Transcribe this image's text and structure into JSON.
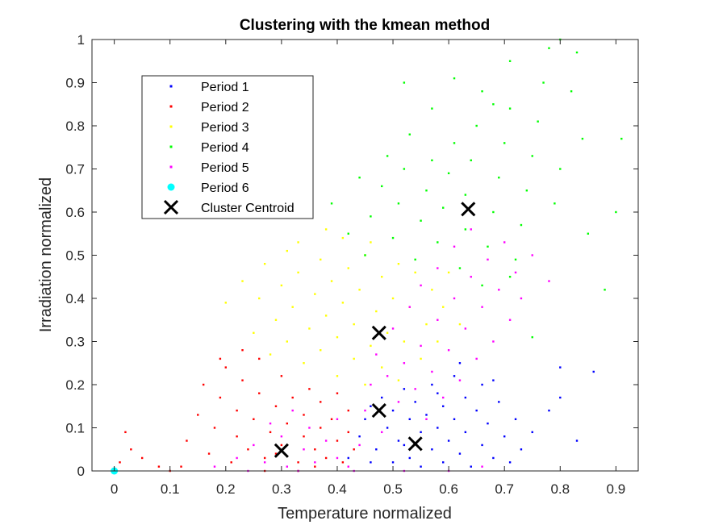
{
  "chart_data": {
    "type": "scatter",
    "title": "Clustering with the kmean method",
    "xlabel": "Temperature normalized",
    "ylabel": "Irradiation normalized",
    "xlim": [
      -0.04,
      0.94
    ],
    "ylim": [
      0,
      1
    ],
    "xticks": [
      "0",
      "0.1",
      "0.2",
      "0.3",
      "0.4",
      "0.5",
      "0.6",
      "0.7",
      "0.8",
      "0.9"
    ],
    "yticks": [
      "0",
      "0.1",
      "0.2",
      "0.3",
      "0.4",
      "0.5",
      "0.6",
      "0.7",
      "0.8",
      "0.9",
      "1"
    ],
    "grid": false,
    "legend_position": "top-left",
    "series": [
      {
        "name": "Period 1",
        "color": "#0000ff",
        "marker": "dot",
        "points": [
          [
            0.42,
            0.03
          ],
          [
            0.44,
            0.08
          ],
          [
            0.45,
            0.12
          ],
          [
            0.46,
            0.15
          ],
          [
            0.47,
            0.05
          ],
          [
            0.48,
            0.17
          ],
          [
            0.49,
            0.1
          ],
          [
            0.5,
            0.02
          ],
          [
            0.5,
            0.14
          ],
          [
            0.51,
            0.07
          ],
          [
            0.52,
            0.19
          ],
          [
            0.53,
            0.03
          ],
          [
            0.53,
            0.12
          ],
          [
            0.54,
            0.16
          ],
          [
            0.55,
            0.09
          ],
          [
            0.55,
            0.01
          ],
          [
            0.56,
            0.13
          ],
          [
            0.57,
            0.05
          ],
          [
            0.57,
            0.2
          ],
          [
            0.58,
            0.1
          ],
          [
            0.59,
            0.02
          ],
          [
            0.59,
            0.15
          ],
          [
            0.6,
            0.07
          ],
          [
            0.61,
            0.12
          ],
          [
            0.61,
            0.22
          ],
          [
            0.62,
            0.04
          ],
          [
            0.63,
            0.17
          ],
          [
            0.63,
            0.09
          ],
          [
            0.64,
            0.01
          ],
          [
            0.65,
            0.14
          ],
          [
            0.66,
            0.06
          ],
          [
            0.66,
            0.2
          ],
          [
            0.67,
            0.11
          ],
          [
            0.68,
            0.03
          ],
          [
            0.69,
            0.16
          ],
          [
            0.7,
            0.08
          ],
          [
            0.71,
            0.02
          ],
          [
            0.72,
            0.12
          ],
          [
            0.73,
            0.05
          ],
          [
            0.75,
            0.09
          ],
          [
            0.78,
            0.14
          ],
          [
            0.8,
            0.24
          ],
          [
            0.8,
            0.17
          ],
          [
            0.83,
            0.07
          ],
          [
            0.86,
            0.23
          ],
          [
            0.46,
            0.02
          ],
          [
            0.52,
            0.06
          ],
          [
            0.58,
            0.18
          ],
          [
            0.62,
            0.25
          ],
          [
            0.68,
            0.21
          ]
        ]
      },
      {
        "name": "Period 2",
        "color": "#ff0000",
        "marker": "dot",
        "points": [
          [
            0.01,
            0.02
          ],
          [
            0.02,
            0.09
          ],
          [
            0.03,
            0.05
          ],
          [
            0.05,
            0.03
          ],
          [
            0.08,
            0.01
          ],
          [
            0.1,
            0.0
          ],
          [
            0.12,
            0.01
          ],
          [
            0.13,
            0.07
          ],
          [
            0.15,
            0.13
          ],
          [
            0.16,
            0.2
          ],
          [
            0.17,
            0.04
          ],
          [
            0.18,
            0.1
          ],
          [
            0.19,
            0.17
          ],
          [
            0.2,
            0.24
          ],
          [
            0.21,
            0.02
          ],
          [
            0.22,
            0.08
          ],
          [
            0.22,
            0.14
          ],
          [
            0.23,
            0.21
          ],
          [
            0.24,
            0.05
          ],
          [
            0.25,
            0.12
          ],
          [
            0.26,
            0.18
          ],
          [
            0.26,
            0.26
          ],
          [
            0.27,
            0.03
          ],
          [
            0.28,
            0.09
          ],
          [
            0.29,
            0.15
          ],
          [
            0.3,
            0.22
          ],
          [
            0.3,
            0.06
          ],
          [
            0.31,
            0.11
          ],
          [
            0.32,
            0.17
          ],
          [
            0.33,
            0.02
          ],
          [
            0.34,
            0.08
          ],
          [
            0.34,
            0.13
          ],
          [
            0.35,
            0.19
          ],
          [
            0.36,
            0.05
          ],
          [
            0.37,
            0.1
          ],
          [
            0.37,
            0.16
          ],
          [
            0.38,
            0.03
          ],
          [
            0.39,
            0.12
          ],
          [
            0.4,
            0.07
          ],
          [
            0.4,
            0.18
          ],
          [
            0.41,
            0.02
          ],
          [
            0.42,
            0.09
          ],
          [
            0.42,
            0.14
          ],
          [
            0.43,
            0.05
          ],
          [
            0.23,
            0.28
          ],
          [
            0.19,
            0.26
          ],
          [
            0.27,
            0.0
          ],
          [
            0.33,
            0.0
          ],
          [
            0.36,
            0.01
          ],
          [
            0.29,
            0.04
          ]
        ]
      },
      {
        "name": "Period 3",
        "color": "#ffff00",
        "marker": "dot",
        "points": [
          [
            0.2,
            0.39
          ],
          [
            0.23,
            0.44
          ],
          [
            0.25,
            0.32
          ],
          [
            0.26,
            0.4
          ],
          [
            0.27,
            0.48
          ],
          [
            0.28,
            0.27
          ],
          [
            0.29,
            0.35
          ],
          [
            0.3,
            0.43
          ],
          [
            0.31,
            0.3
          ],
          [
            0.32,
            0.38
          ],
          [
            0.33,
            0.46
          ],
          [
            0.33,
            0.53
          ],
          [
            0.34,
            0.25
          ],
          [
            0.35,
            0.33
          ],
          [
            0.36,
            0.41
          ],
          [
            0.37,
            0.49
          ],
          [
            0.37,
            0.28
          ],
          [
            0.38,
            0.36
          ],
          [
            0.39,
            0.44
          ],
          [
            0.4,
            0.22
          ],
          [
            0.4,
            0.31
          ],
          [
            0.41,
            0.39
          ],
          [
            0.42,
            0.47
          ],
          [
            0.43,
            0.26
          ],
          [
            0.43,
            0.34
          ],
          [
            0.44,
            0.42
          ],
          [
            0.45,
            0.5
          ],
          [
            0.45,
            0.2
          ],
          [
            0.46,
            0.29
          ],
          [
            0.47,
            0.37
          ],
          [
            0.48,
            0.45
          ],
          [
            0.48,
            0.24
          ],
          [
            0.49,
            0.32
          ],
          [
            0.5,
            0.4
          ],
          [
            0.51,
            0.48
          ],
          [
            0.51,
            0.21
          ],
          [
            0.52,
            0.3
          ],
          [
            0.53,
            0.38
          ],
          [
            0.54,
            0.46
          ],
          [
            0.55,
            0.26
          ],
          [
            0.56,
            0.34
          ],
          [
            0.57,
            0.42
          ],
          [
            0.58,
            0.3
          ],
          [
            0.59,
            0.38
          ],
          [
            0.6,
            0.46
          ],
          [
            0.62,
            0.34
          ],
          [
            0.38,
            0.56
          ],
          [
            0.41,
            0.54
          ],
          [
            0.31,
            0.51
          ],
          [
            0.46,
            0.53
          ]
        ]
      },
      {
        "name": "Period 4",
        "color": "#00ff00",
        "marker": "dot",
        "points": [
          [
            0.39,
            0.62
          ],
          [
            0.42,
            0.55
          ],
          [
            0.44,
            0.68
          ],
          [
            0.45,
            0.5
          ],
          [
            0.46,
            0.59
          ],
          [
            0.48,
            0.66
          ],
          [
            0.49,
            0.73
          ],
          [
            0.5,
            0.54
          ],
          [
            0.51,
            0.62
          ],
          [
            0.52,
            0.7
          ],
          [
            0.53,
            0.78
          ],
          [
            0.54,
            0.49
          ],
          [
            0.55,
            0.58
          ],
          [
            0.56,
            0.65
          ],
          [
            0.57,
            0.72
          ],
          [
            0.57,
            0.84
          ],
          [
            0.58,
            0.53
          ],
          [
            0.59,
            0.61
          ],
          [
            0.6,
            0.69
          ],
          [
            0.61,
            0.76
          ],
          [
            0.61,
            0.91
          ],
          [
            0.62,
            0.47
          ],
          [
            0.63,
            0.56
          ],
          [
            0.63,
            0.64
          ],
          [
            0.64,
            0.72
          ],
          [
            0.65,
            0.8
          ],
          [
            0.66,
            0.88
          ],
          [
            0.66,
            0.43
          ],
          [
            0.67,
            0.52
          ],
          [
            0.68,
            0.6
          ],
          [
            0.69,
            0.68
          ],
          [
            0.7,
            0.76
          ],
          [
            0.71,
            0.84
          ],
          [
            0.71,
            0.95
          ],
          [
            0.72,
            0.49
          ],
          [
            0.73,
            0.57
          ],
          [
            0.74,
            0.65
          ],
          [
            0.75,
            0.73
          ],
          [
            0.76,
            0.81
          ],
          [
            0.77,
            0.9
          ],
          [
            0.78,
            0.98
          ],
          [
            0.79,
            0.62
          ],
          [
            0.8,
            0.7
          ],
          [
            0.82,
            0.88
          ],
          [
            0.83,
            0.97
          ],
          [
            0.84,
            0.77
          ],
          [
            0.85,
            0.55
          ],
          [
            0.88,
            0.42
          ],
          [
            0.9,
            0.6
          ],
          [
            0.91,
            0.77
          ],
          [
            0.75,
            0.31
          ],
          [
            0.71,
            0.45
          ],
          [
            0.8,
            1.0
          ],
          [
            0.68,
            0.85
          ],
          [
            0.52,
            0.9
          ]
        ]
      },
      {
        "name": "Period 5",
        "color": "#ff00ff",
        "marker": "dot",
        "points": [
          [
            0.18,
            0.01
          ],
          [
            0.22,
            0.03
          ],
          [
            0.25,
            0.06
          ],
          [
            0.27,
            0.02
          ],
          [
            0.28,
            0.11
          ],
          [
            0.3,
            0.08
          ],
          [
            0.31,
            0.01
          ],
          [
            0.32,
            0.14
          ],
          [
            0.34,
            0.05
          ],
          [
            0.35,
            0.1
          ],
          [
            0.36,
            0.02
          ],
          [
            0.38,
            0.07
          ],
          [
            0.4,
            0.12
          ],
          [
            0.42,
            0.01
          ],
          [
            0.44,
            0.06
          ],
          [
            0.46,
            0.2
          ],
          [
            0.47,
            0.27
          ],
          [
            0.48,
            0.09
          ],
          [
            0.49,
            0.22
          ],
          [
            0.5,
            0.33
          ],
          [
            0.51,
            0.16
          ],
          [
            0.52,
            0.25
          ],
          [
            0.53,
            0.38
          ],
          [
            0.54,
            0.19
          ],
          [
            0.55,
            0.29
          ],
          [
            0.55,
            0.43
          ],
          [
            0.56,
            0.12
          ],
          [
            0.57,
            0.23
          ],
          [
            0.58,
            0.35
          ],
          [
            0.58,
            0.47
          ],
          [
            0.59,
            0.17
          ],
          [
            0.6,
            0.28
          ],
          [
            0.61,
            0.4
          ],
          [
            0.61,
            0.52
          ],
          [
            0.62,
            0.21
          ],
          [
            0.63,
            0.33
          ],
          [
            0.64,
            0.45
          ],
          [
            0.64,
            0.56
          ],
          [
            0.65,
            0.26
          ],
          [
            0.66,
            0.38
          ],
          [
            0.67,
            0.49
          ],
          [
            0.68,
            0.3
          ],
          [
            0.69,
            0.42
          ],
          [
            0.7,
            0.53
          ],
          [
            0.71,
            0.35
          ],
          [
            0.72,
            0.46
          ],
          [
            0.73,
            0.4
          ],
          [
            0.75,
            0.5
          ],
          [
            0.78,
            0.44
          ],
          [
            0.45,
            0.14
          ],
          [
            0.4,
            0.03
          ],
          [
            0.24,
            0.0
          ],
          [
            0.33,
            0.0
          ],
          [
            0.43,
            0.0
          ],
          [
            0.52,
            0.0
          ],
          [
            0.6,
            0.0
          ],
          [
            0.66,
            0.01
          ]
        ]
      },
      {
        "name": "Period 6",
        "color": "#00ffff",
        "marker": "filled-circle",
        "points": [
          [
            0.0,
            0.0
          ]
        ]
      },
      {
        "name": "Cluster Centroid",
        "color": "#000000",
        "marker": "x",
        "points": [
          [
            0.3,
            0.047
          ],
          [
            0.475,
            0.32
          ],
          [
            0.475,
            0.14
          ],
          [
            0.54,
            0.063
          ],
          [
            0.635,
            0.607
          ]
        ]
      }
    ]
  }
}
